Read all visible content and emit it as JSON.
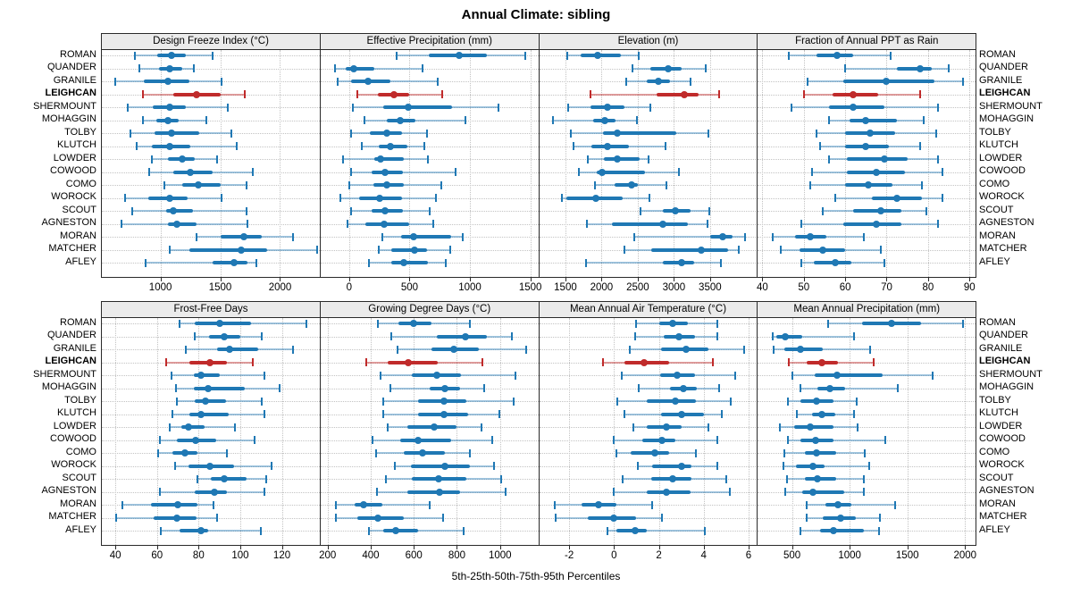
{
  "title": "Annual Climate: sibling",
  "caption": "5th-25th-50th-75th-95th Percentiles",
  "colors": {
    "series": "#1f78b4",
    "series_light": "rgba(31,120,180,0.42)",
    "highlight": "#c02b2b",
    "highlight_light": "rgba(192,43,43,0.45)",
    "grid": "#c3c3c3",
    "strip_bg": "#ebebeb",
    "border": "#2a2a2a"
  },
  "highlight_site": "LEIGHCAN",
  "chart_data": {
    "type": "percentile-dotplot",
    "title": "Annual Climate: sibling",
    "xlabel": "5th-25th-50th-75th-95th Percentiles",
    "percentile_labels": [
      "5th",
      "25th",
      "50th",
      "75th",
      "95th"
    ],
    "legend_position": "none",
    "grid": "dotted",
    "sites": [
      "ROMAN",
      "QUANDER",
      "GRANILE",
      "LEIGHCAN",
      "SHERMOUNT",
      "MOHAGGIN",
      "TOLBY",
      "KLUTCH",
      "LOWDER",
      "COWOOD",
      "COMO",
      "WOROCK",
      "SCOUT",
      "AGNESTON",
      "MORAN",
      "MATCHER",
      "AFLEY"
    ],
    "panels": [
      {
        "title": "Design Freeze Index (°C)",
        "row": 0,
        "col": 0,
        "ticks": [
          1000,
          1500,
          2000
        ],
        "domain": [
          510,
          2325
        ],
        "values": [
          [
            785,
            970,
            1090,
            1215,
            1435
          ],
          [
            820,
            985,
            1080,
            1180,
            1280
          ],
          [
            620,
            860,
            1065,
            1245,
            1510
          ],
          [
            850,
            1105,
            1305,
            1505,
            1705
          ],
          [
            725,
            935,
            1075,
            1215,
            1565
          ],
          [
            850,
            965,
            1060,
            1150,
            1385
          ],
          [
            750,
            950,
            1095,
            1325,
            1590
          ],
          [
            805,
            925,
            1080,
            1250,
            1635
          ],
          [
            925,
            1060,
            1180,
            1290,
            1475
          ],
          [
            905,
            1105,
            1250,
            1435,
            1770
          ],
          [
            1030,
            1180,
            1320,
            1505,
            1720
          ],
          [
            705,
            895,
            1080,
            1230,
            1510
          ],
          [
            765,
            1045,
            1110,
            1275,
            1720
          ],
          [
            675,
            1065,
            1135,
            1305,
            1725
          ],
          [
            1305,
            1505,
            1695,
            1850,
            2105
          ],
          [
            1075,
            1245,
            1675,
            1895,
            2310
          ],
          [
            875,
            1435,
            1615,
            1725,
            1800
          ]
        ]
      },
      {
        "title": "Effective Precipitation (mm)",
        "row": 0,
        "col": 1,
        "ticks": [
          0,
          500,
          1000,
          1500
        ],
        "domain": [
          -237,
          1560
        ],
        "values": [
          [
            390,
            660,
            910,
            1140,
            1455
          ],
          [
            -120,
            -30,
            40,
            205,
            605
          ],
          [
            -95,
            15,
            155,
            345,
            735
          ],
          [
            65,
            235,
            370,
            500,
            770
          ],
          [
            30,
            280,
            490,
            855,
            1240
          ],
          [
            125,
            315,
            420,
            550,
            965
          ],
          [
            15,
            175,
            315,
            440,
            645
          ],
          [
            105,
            245,
            345,
            485,
            625
          ],
          [
            -50,
            205,
            260,
            450,
            650
          ],
          [
            15,
            190,
            300,
            445,
            885
          ],
          [
            0,
            200,
            310,
            455,
            760
          ],
          [
            -75,
            85,
            255,
            440,
            720
          ],
          [
            15,
            185,
            300,
            445,
            665
          ],
          [
            -10,
            135,
            290,
            500,
            700
          ],
          [
            275,
            430,
            535,
            845,
            940
          ],
          [
            245,
            350,
            545,
            645,
            840
          ],
          [
            165,
            350,
            450,
            655,
            800
          ]
        ]
      },
      {
        "title": "Elevation (m)",
        "row": 0,
        "col": 2,
        "ticks": [
          1500,
          2000,
          2500,
          3000,
          3500
        ],
        "domain": [
          1136,
          4138
        ],
        "values": [
          [
            1520,
            1710,
            1945,
            2265,
            2510
          ],
          [
            2425,
            2680,
            2925,
            3110,
            3440
          ],
          [
            2340,
            2620,
            2790,
            2950,
            3230
          ],
          [
            1845,
            2765,
            3145,
            3340,
            3625
          ],
          [
            1540,
            1845,
            2080,
            2310,
            2680
          ],
          [
            1330,
            1885,
            2040,
            2190,
            2485
          ],
          [
            1575,
            2020,
            2215,
            3035,
            3475
          ],
          [
            1615,
            1860,
            2080,
            2375,
            2890
          ],
          [
            1815,
            2030,
            2215,
            2520,
            2655
          ],
          [
            1685,
            1930,
            2010,
            2600,
            3070
          ],
          [
            1910,
            2180,
            2410,
            2500,
            2900
          ],
          [
            1445,
            1515,
            1920,
            2295,
            2665
          ],
          [
            2540,
            2845,
            3025,
            3235,
            3490
          ],
          [
            1800,
            2145,
            2845,
            3195,
            3470
          ],
          [
            2450,
            3500,
            3675,
            3805,
            3980
          ],
          [
            2315,
            2685,
            3380,
            3745,
            3895
          ],
          [
            1785,
            2845,
            3105,
            3285,
            3645
          ]
        ]
      },
      {
        "title": "Fraction of Annual PPT as Rain",
        "row": 0,
        "col": 3,
        "ticks": [
          40,
          50,
          60,
          70,
          80,
          90
        ],
        "domain": [
          38.9,
          91.3
        ],
        "values": [
          [
            46.5,
            53,
            58,
            62,
            71
          ],
          [
            60,
            72.5,
            78,
            81,
            85
          ],
          [
            51,
            59.5,
            70,
            81.5,
            88.5
          ],
          [
            50,
            57,
            62,
            68,
            78
          ],
          [
            47,
            56,
            62,
            69.5,
            82.5
          ],
          [
            56,
            61,
            65,
            72.5,
            79
          ],
          [
            53,
            60,
            66,
            72,
            82
          ],
          [
            54,
            60,
            65,
            70.5,
            78
          ],
          [
            56,
            60.5,
            69.5,
            75,
            82.5
          ],
          [
            52,
            60.5,
            67.5,
            74.5,
            83.5
          ],
          [
            51.5,
            60,
            65.5,
            71.5,
            78.5
          ],
          [
            57.5,
            66.5,
            72.5,
            78.5,
            83.5
          ],
          [
            54.5,
            62,
            68.5,
            73.5,
            79.5
          ],
          [
            49.5,
            59.5,
            67.5,
            73.5,
            82.5
          ],
          [
            42.5,
            48,
            51.5,
            55.5,
            64.5
          ],
          [
            44.5,
            49,
            54.5,
            60,
            68.5
          ],
          [
            49.5,
            52.5,
            57.5,
            61.5,
            69.5
          ]
        ]
      },
      {
        "title": "Frost-Free Days",
        "row": 1,
        "col": 0,
        "ticks": [
          40,
          60,
          80,
          100,
          120
        ],
        "domain": [
          33.5,
          137.8
        ],
        "values": [
          [
            71,
            78,
            90,
            105,
            132
          ],
          [
            78,
            85,
            92.5,
            100,
            110.5
          ],
          [
            74,
            89,
            95,
            108.5,
            125.5
          ],
          [
            64.5,
            75.5,
            85.5,
            93.5,
            106
          ],
          [
            67,
            77.5,
            81,
            90,
            111.5
          ],
          [
            69,
            77.5,
            84.5,
            102,
            119
          ],
          [
            69.5,
            78,
            83.5,
            93,
            110.5
          ],
          [
            67.5,
            75.5,
            81,
            94.5,
            111.5
          ],
          [
            66,
            71.5,
            75,
            83,
            97.5
          ],
          [
            61.5,
            69.5,
            78.5,
            88.5,
            107
          ],
          [
            60.5,
            67.5,
            73.5,
            79.5,
            93.5
          ],
          [
            68.5,
            75,
            85.5,
            97,
            115
          ],
          [
            79.5,
            86,
            92.5,
            103,
            112.5
          ],
          [
            61.5,
            78,
            87.5,
            93.5,
            111.5
          ],
          [
            43.5,
            57,
            70,
            79.5,
            87
          ],
          [
            40.5,
            58.5,
            69.5,
            79,
            89
          ],
          [
            62,
            71,
            81,
            84.5,
            110
          ]
        ]
      },
      {
        "title": "Growing Degree Days (°C)",
        "row": 1,
        "col": 1,
        "ticks": [
          200,
          400,
          600,
          800,
          1000
        ],
        "domain": [
          167,
          1174
        ],
        "values": [
          [
            435,
            530,
            600,
            680,
            860
          ],
          [
            495,
            705,
            840,
            940,
            1055
          ],
          [
            525,
            680,
            785,
            900,
            1120
          ],
          [
            380,
            480,
            575,
            710,
            920
          ],
          [
            445,
            590,
            705,
            820,
            1070
          ],
          [
            490,
            675,
            745,
            815,
            925
          ],
          [
            460,
            620,
            740,
            845,
            1065
          ],
          [
            460,
            620,
            740,
            850,
            995
          ],
          [
            480,
            570,
            695,
            800,
            915
          ],
          [
            410,
            535,
            620,
            775,
            965
          ],
          [
            425,
            555,
            640,
            745,
            860
          ],
          [
            510,
            585,
            745,
            860,
            970
          ],
          [
            470,
            590,
            715,
            845,
            1005
          ],
          [
            430,
            570,
            720,
            815,
            1025
          ],
          [
            240,
            325,
            365,
            455,
            675
          ],
          [
            240,
            340,
            435,
            555,
            735
          ],
          [
            390,
            460,
            515,
            620,
            830
          ]
        ]
      },
      {
        "title": "Mean Annual Air Temperature (°C)",
        "row": 1,
        "col": 2,
        "ticks": [
          -2,
          0,
          2,
          4,
          6
        ],
        "domain": [
          -3.34,
          6.34
        ],
        "values": [
          [
            1.0,
            2.0,
            2.6,
            3.3,
            4.6
          ],
          [
            0.95,
            2.2,
            2.9,
            3.6,
            4.6
          ],
          [
            0.7,
            2.1,
            3.2,
            4.2,
            5.8
          ],
          [
            -0.5,
            0.45,
            1.35,
            2.45,
            4.4
          ],
          [
            0.35,
            2.05,
            2.8,
            3.6,
            5.4
          ],
          [
            1.1,
            2.5,
            3.1,
            3.7,
            4.7
          ],
          [
            0.15,
            1.45,
            2.75,
            3.65,
            5.2
          ],
          [
            0.45,
            2.1,
            3.0,
            4.0,
            4.8
          ],
          [
            0.85,
            1.45,
            2.35,
            3.0,
            4.2
          ],
          [
            0.0,
            1.25,
            2.15,
            2.75,
            4.6
          ],
          [
            0.1,
            0.75,
            1.8,
            2.45,
            3.65
          ],
          [
            1.05,
            1.7,
            3.0,
            3.45,
            4.6
          ],
          [
            0.4,
            1.65,
            2.6,
            3.45,
            5.0
          ],
          [
            0.0,
            1.45,
            2.35,
            3.4,
            5.15
          ],
          [
            -2.65,
            -1.45,
            -0.7,
            0.1,
            1.7
          ],
          [
            -2.6,
            -1.15,
            0.0,
            1.0,
            2.15
          ],
          [
            -0.3,
            0.1,
            0.95,
            1.45,
            4.05
          ]
        ]
      },
      {
        "title": "Mean Annual Precipitation (mm)",
        "row": 1,
        "col": 3,
        "ticks": [
          500,
          1000,
          1500,
          2000
        ],
        "domain": [
          203,
          2085
        ],
        "values": [
          [
            810,
            1110,
            1360,
            1615,
            1980
          ],
          [
            330,
            360,
            445,
            585,
            1035
          ],
          [
            340,
            430,
            570,
            770,
            1180
          ],
          [
            475,
            630,
            755,
            900,
            1205
          ],
          [
            500,
            700,
            890,
            1285,
            1720
          ],
          [
            575,
            720,
            825,
            960,
            1420
          ],
          [
            465,
            575,
            710,
            860,
            1060
          ],
          [
            545,
            670,
            755,
            875,
            1035
          ],
          [
            395,
            515,
            655,
            860,
            1070
          ],
          [
            465,
            575,
            705,
            860,
            1310
          ],
          [
            430,
            610,
            710,
            880,
            1130
          ],
          [
            425,
            535,
            680,
            785,
            1170
          ],
          [
            455,
            610,
            720,
            885,
            1120
          ],
          [
            440,
            590,
            685,
            955,
            1125
          ],
          [
            630,
            790,
            900,
            1015,
            1395
          ],
          [
            625,
            770,
            925,
            1055,
            1260
          ],
          [
            575,
            745,
            860,
            1120,
            1255
          ]
        ]
      }
    ]
  }
}
